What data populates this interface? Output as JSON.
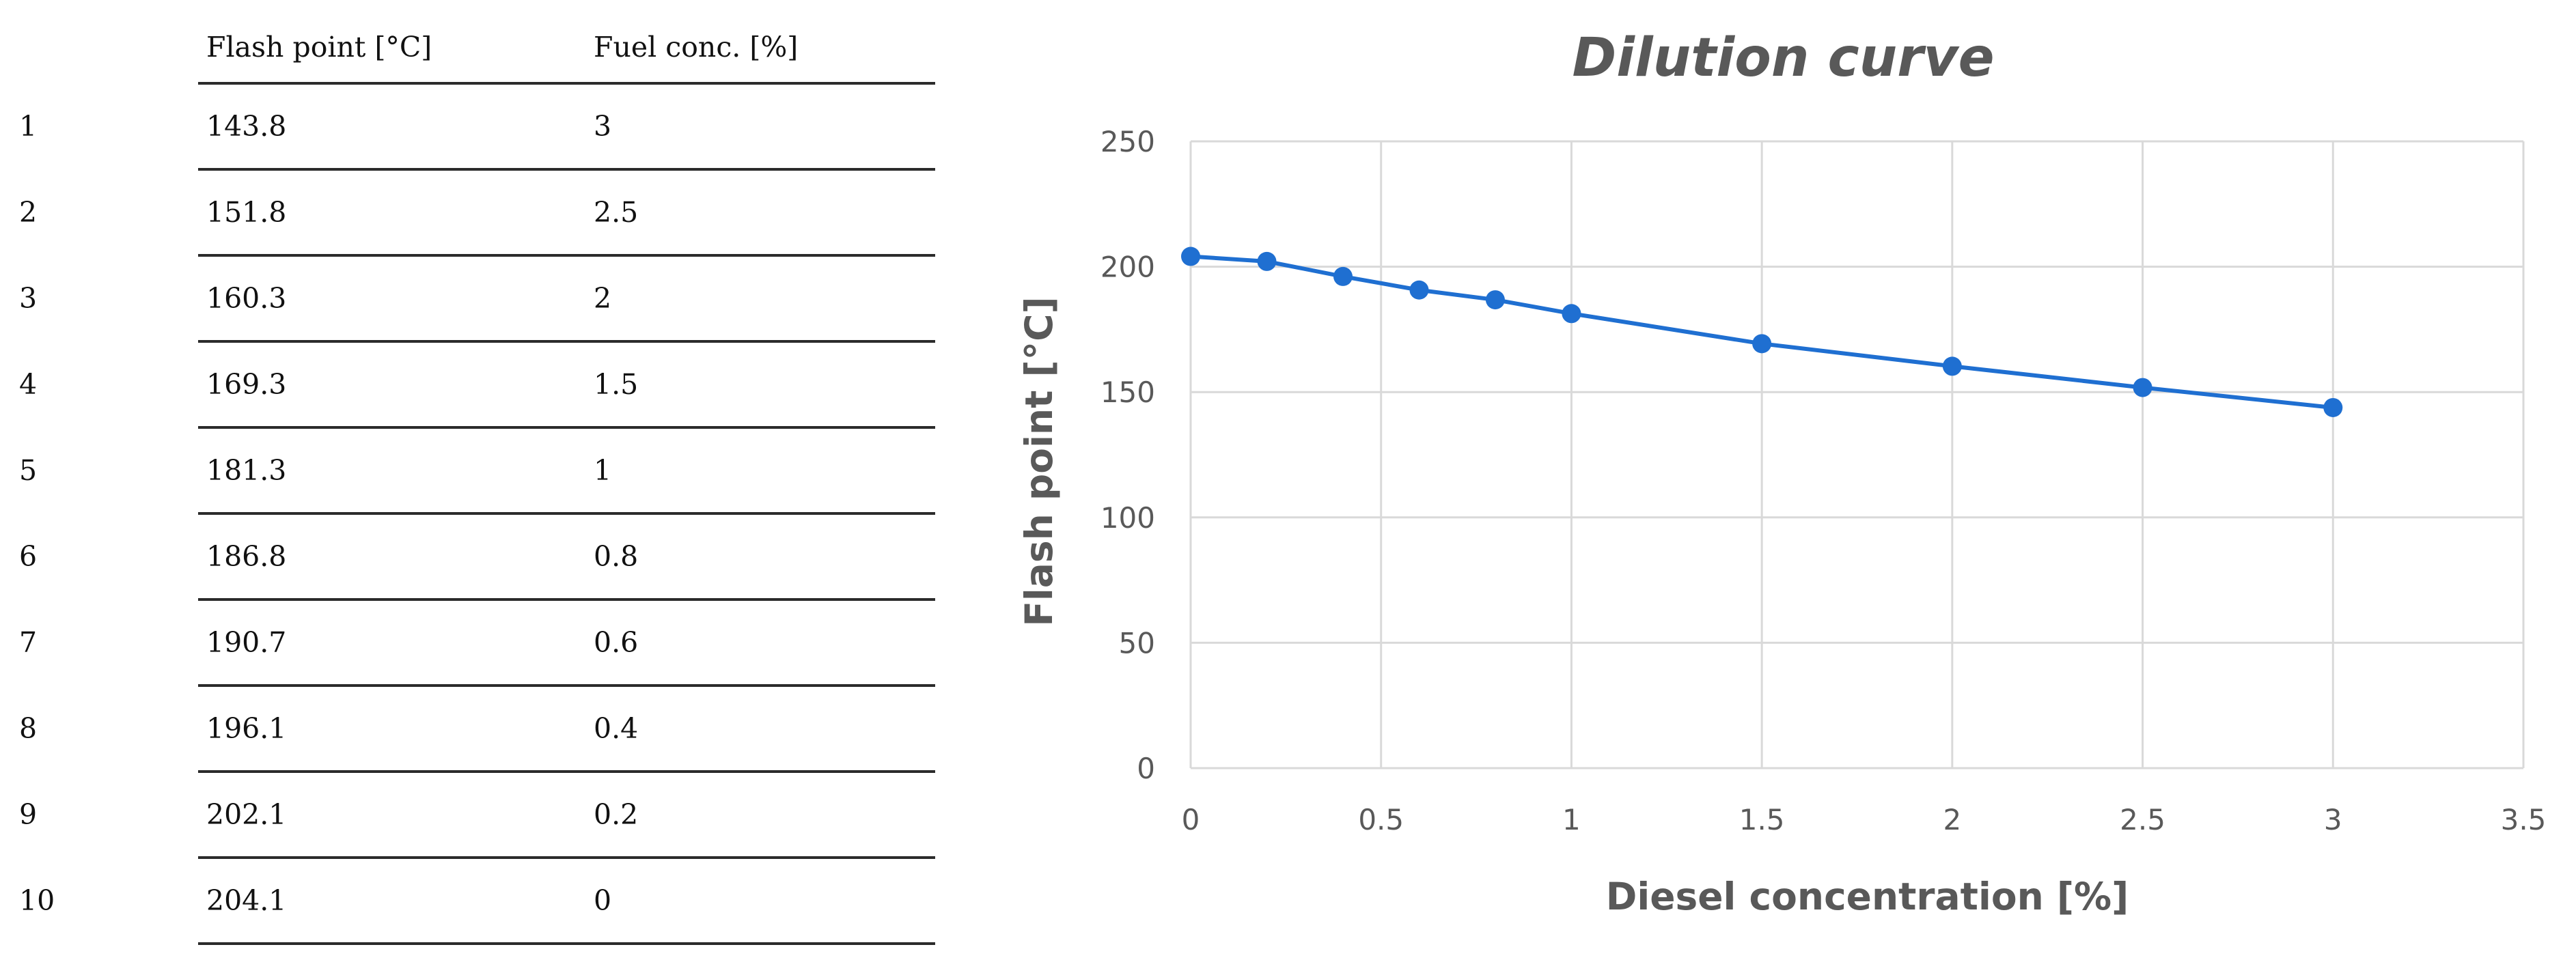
{
  "table": {
    "headers": [
      "",
      "Flash point [°C]",
      "Fuel conc. [%]"
    ],
    "rows": [
      [
        "1",
        "143.8",
        "3"
      ],
      [
        "2",
        "151.8",
        "2.5"
      ],
      [
        "3",
        "160.3",
        "2"
      ],
      [
        "4",
        "169.3",
        "1.5"
      ],
      [
        "5",
        "181.3",
        "1"
      ],
      [
        "6",
        "186.8",
        "0.8"
      ],
      [
        "7",
        "190.7",
        "0.6"
      ],
      [
        "8",
        "196.1",
        "0.4"
      ],
      [
        "9",
        "202.1",
        "0.2"
      ],
      [
        "10",
        "204.1",
        "0"
      ]
    ]
  },
  "chart_data": {
    "type": "line",
    "title": "Dilution curve",
    "xlabel": "Diesel concentration [%]",
    "ylabel": "Flash point [°C]",
    "x": [
      0,
      0.2,
      0.4,
      0.6,
      0.8,
      1,
      1.5,
      2,
      2.5,
      3
    ],
    "series": [
      {
        "values": [
          204.1,
          202.1,
          196.1,
          190.7,
          186.8,
          181.3,
          169.3,
          160.3,
          151.8,
          143.8
        ],
        "color": "#1f6fd1"
      }
    ],
    "xlim": [
      0,
      3.5
    ],
    "ylim": [
      0,
      250
    ],
    "xticks": [
      "0",
      "0.5",
      "1",
      "1.5",
      "2",
      "2.5",
      "3",
      "3.5"
    ],
    "yticks": [
      "0",
      "50",
      "100",
      "150",
      "200",
      "250"
    ],
    "grid": true,
    "legend": "none"
  }
}
